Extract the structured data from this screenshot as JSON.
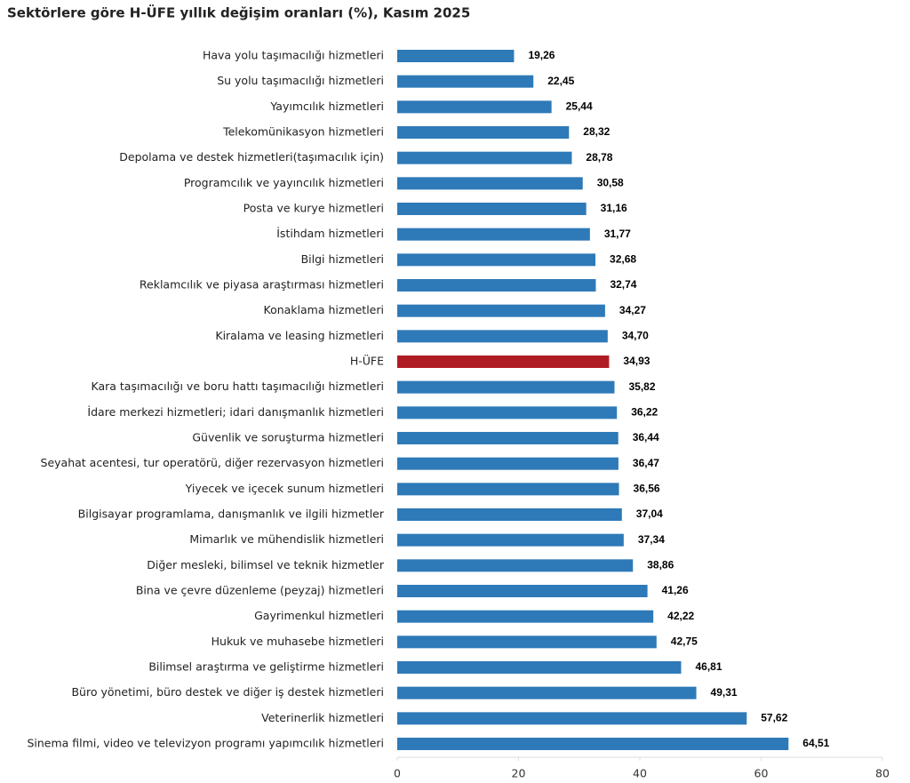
{
  "chart_data": {
    "type": "bar",
    "orientation": "horizontal",
    "title": "Sektörlere göre H-ÜFE yıllık değişim oranları (%), Kasım 2025",
    "categories": [
      "Hava yolu taşımacılığı hizmetleri",
      "Su yolu taşımacılığı hizmetleri",
      "Yayımcılık hizmetleri",
      "Telekomünikasyon hizmetleri",
      "Depolama ve destek hizmetleri(taşımacılık için)",
      "Programcılık ve yayıncılık hizmetleri",
      "Posta ve kurye hizmetleri",
      "İstihdam hizmetleri",
      "Bilgi hizmetleri",
      "Reklamcılık ve piyasa araştırması hizmetleri",
      "Konaklama hizmetleri",
      "Kiralama ve leasing hizmetleri",
      "H-ÜFE",
      "Kara taşımacılığı ve boru hattı taşımacılığı hizmetleri",
      "İdare merkezi hizmetleri; idari danışmanlık hizmetleri",
      "Güvenlik ve soruşturma hizmetleri",
      "Seyahat acentesi, tur operatörü, diğer rezervasyon hizmetleri",
      "Yiyecek ve içecek sunum hizmetleri",
      "Bilgisayar programlama, danışmanlık ve ilgili hizmetler",
      "Mimarlık ve mühendislik hizmetleri",
      "Diğer mesleki, bilimsel ve teknik hizmetler",
      "Bina ve çevre düzenleme (peyzaj) hizmetleri",
      "Gayrimenkul hizmetleri",
      "Hukuk ve muhasebe hizmetleri",
      "Bilimsel araştırma ve geliştirme hizmetleri",
      "Büro yönetimi, büro destek ve diğer iş destek hizmetleri",
      "Veterinerlik hizmetleri",
      "Sinema filmi, video ve televizyon programı yapımcılık hizmetleri"
    ],
    "values": [
      19.26,
      22.45,
      25.44,
      28.32,
      28.78,
      30.58,
      31.16,
      31.77,
      32.68,
      32.74,
      34.27,
      34.7,
      34.93,
      35.82,
      36.22,
      36.44,
      36.47,
      36.56,
      37.04,
      37.34,
      38.86,
      41.26,
      42.22,
      42.75,
      46.81,
      49.31,
      57.62,
      64.51
    ],
    "value_labels": [
      "19,26",
      "22,45",
      "25,44",
      "28,32",
      "28,78",
      "30,58",
      "31,16",
      "31,77",
      "32,68",
      "32,74",
      "34,27",
      "34,70",
      "34,93",
      "35,82",
      "36,22",
      "36,44",
      "36,47",
      "36,56",
      "37,04",
      "37,34",
      "38,86",
      "41,26",
      "42,22",
      "42,75",
      "46,81",
      "49,31",
      "57,62",
      "64,51"
    ],
    "colors": [
      "#2e7ab8",
      "#2e7ab8",
      "#2e7ab8",
      "#2e7ab8",
      "#2e7ab8",
      "#2e7ab8",
      "#2e7ab8",
      "#2e7ab8",
      "#2e7ab8",
      "#2e7ab8",
      "#2e7ab8",
      "#2e7ab8",
      "#b01c24",
      "#2e7ab8",
      "#2e7ab8",
      "#2e7ab8",
      "#2e7ab8",
      "#2e7ab8",
      "#2e7ab8",
      "#2e7ab8",
      "#2e7ab8",
      "#2e7ab8",
      "#2e7ab8",
      "#2e7ab8",
      "#2e7ab8",
      "#2e7ab8",
      "#2e7ab8",
      "#2e7ab8"
    ],
    "xlim": [
      0,
      80
    ],
    "xticks": [
      0,
      20,
      40,
      60,
      80
    ],
    "grid": false
  }
}
